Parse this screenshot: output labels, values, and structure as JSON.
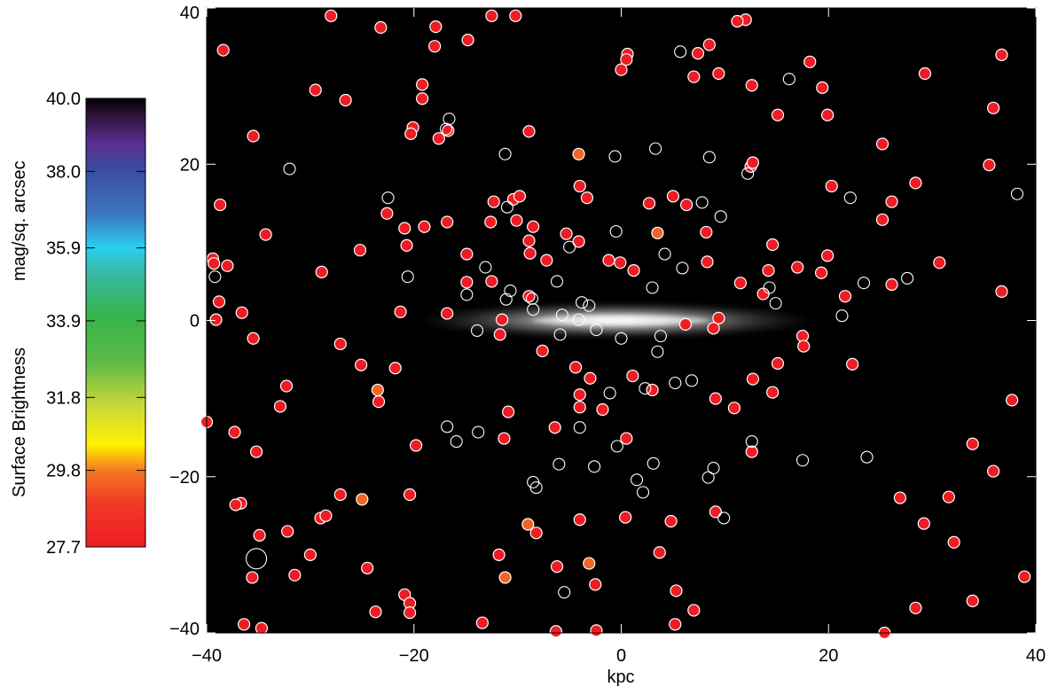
{
  "chart_data": [
    {
      "type": "scatter",
      "background": "#000000",
      "xlabel": "kpc",
      "ylabel": "",
      "xlim": [
        -40,
        40
      ],
      "ylim": [
        -40,
        40
      ],
      "xticks": [
        -40,
        -20,
        0,
        20,
        40
      ],
      "yticks": [
        -40,
        -20,
        0,
        20,
        40
      ],
      "grid": false,
      "galaxy": {
        "type": "edge-on disk image",
        "center": [
          0,
          0
        ],
        "extent_x": [
          -20,
          19
        ],
        "extent_y": [
          -2,
          2
        ],
        "color": "#e8e8e8"
      },
      "series": [
        {
          "style": "filled red circle, white edge",
          "color": "#ee1c24",
          "points": [
            [
              -28,
              39
            ],
            [
              -12.5,
              39
            ],
            [
              -10.2,
              39
            ],
            [
              12,
              38.5
            ],
            [
              11.2,
              38.3
            ],
            [
              -23.2,
              37.5
            ],
            [
              -17.9,
              37.6
            ],
            [
              -14.8,
              35.9
            ],
            [
              -38.4,
              34.6
            ],
            [
              -18,
              35.1
            ],
            [
              8.5,
              35.3
            ],
            [
              0.6,
              34.1
            ],
            [
              0.5,
              33.4
            ],
            [
              7.4,
              34.2
            ],
            [
              36.7,
              34
            ],
            [
              18.2,
              33.1
            ],
            [
              0,
              32.1
            ],
            [
              7,
              31.2
            ],
            [
              9.4,
              31.6
            ],
            [
              29.3,
              31.6
            ],
            [
              -19.2,
              30.2
            ],
            [
              12.6,
              30.1
            ],
            [
              -29.5,
              29.5
            ],
            [
              19.4,
              29.8
            ],
            [
              -26.6,
              28.2
            ],
            [
              -19.2,
              28.4
            ],
            [
              35.9,
              27.2
            ],
            [
              15.1,
              26.3
            ],
            [
              19.9,
              26.3
            ],
            [
              -20.1,
              24.7
            ],
            [
              -16.7,
              24.3
            ],
            [
              -8.9,
              24.2
            ],
            [
              -35.5,
              23.6
            ],
            [
              -20.3,
              23.9
            ],
            [
              -17.6,
              23.3
            ],
            [
              25.2,
              22.6
            ],
            [
              12.5,
              19.7
            ],
            [
              12.7,
              20.2
            ],
            [
              35.5,
              19.9
            ],
            [
              -4,
              17.2
            ],
            [
              28.4,
              17.6
            ],
            [
              20.3,
              17.2
            ],
            [
              -12.3,
              15.2
            ],
            [
              -10.4,
              15.5
            ],
            [
              -9.8,
              15.9
            ],
            [
              -3.3,
              15.7
            ],
            [
              5,
              15.9
            ],
            [
              2.7,
              15
            ],
            [
              6.3,
              14.8
            ],
            [
              -38.7,
              14.8
            ],
            [
              26.1,
              15.2
            ],
            [
              -22.6,
              13.7
            ],
            [
              -16.8,
              12.6
            ],
            [
              -12.6,
              12.6
            ],
            [
              -10.1,
              12.8
            ],
            [
              -8.5,
              12
            ],
            [
              -34.3,
              11
            ],
            [
              -19,
              12
            ],
            [
              -20.9,
              11.8
            ],
            [
              -5.3,
              11.1
            ],
            [
              8.2,
              11.3
            ],
            [
              25.2,
              12.9
            ],
            [
              -8.9,
              10.2
            ],
            [
              -4.1,
              10.1
            ],
            [
              14.6,
              9.7
            ],
            [
              -25.2,
              9
            ],
            [
              -14.9,
              8.5
            ],
            [
              -8.8,
              8.6
            ],
            [
              -39.4,
              7.9
            ],
            [
              -39.3,
              7.3
            ],
            [
              -7.2,
              7.7
            ],
            [
              -1.2,
              7.7
            ],
            [
              -0.1,
              7.4
            ],
            [
              19.9,
              8.3
            ],
            [
              30.7,
              7.4
            ],
            [
              -38,
              7
            ],
            [
              -20.7,
              9.6
            ],
            [
              -28.9,
              6.2
            ],
            [
              1.2,
              6.4
            ],
            [
              8.3,
              7.5
            ],
            [
              14.2,
              6.4
            ],
            [
              17,
              6.8
            ],
            [
              19.3,
              6.1
            ],
            [
              -14.9,
              4.9
            ],
            [
              -12.5,
              5
            ],
            [
              26.1,
              4.6
            ],
            [
              11.5,
              4.8
            ],
            [
              -8.9,
              3.1
            ],
            [
              13.7,
              3.4
            ],
            [
              21.6,
              3.1
            ],
            [
              36.7,
              3.7
            ],
            [
              -38.8,
              2.4
            ],
            [
              -36.6,
              1
            ],
            [
              -21.3,
              1.1
            ],
            [
              -16.8,
              0.9
            ],
            [
              -39.1,
              0.1
            ],
            [
              -11.5,
              0.1
            ],
            [
              9.4,
              0.3
            ],
            [
              6.2,
              -0.5
            ],
            [
              8.9,
              -1
            ],
            [
              -35.5,
              -2.3
            ],
            [
              -11.7,
              -1.8
            ],
            [
              17.5,
              -2
            ],
            [
              17.6,
              -3.3
            ],
            [
              -27.1,
              -3
            ],
            [
              -7.6,
              -3.9
            ],
            [
              -25.1,
              -5.7
            ],
            [
              -21.8,
              -6.1
            ],
            [
              -4.4,
              -6
            ],
            [
              15.1,
              -5.5
            ],
            [
              22.3,
              -5.6
            ],
            [
              -3,
              -7.4
            ],
            [
              1.1,
              -7.1
            ],
            [
              12.7,
              -7.5
            ],
            [
              -32.3,
              -8.4
            ],
            [
              3,
              -8.9
            ],
            [
              14.6,
              -9.2
            ],
            [
              -4,
              -9.5
            ],
            [
              -23.4,
              -10.4
            ],
            [
              -32.9,
              -11
            ],
            [
              -10.9,
              -11.7
            ],
            [
              -4,
              -11.1
            ],
            [
              -1.8,
              -11.4
            ],
            [
              9.1,
              -10
            ],
            [
              10.9,
              -11.2
            ],
            [
              37.7,
              -10.2
            ],
            [
              -40,
              -13
            ],
            [
              -6.4,
              -13.7
            ],
            [
              -37.3,
              -14.3
            ],
            [
              0.5,
              -15.1
            ],
            [
              -11.3,
              -15.1
            ],
            [
              -19.8,
              -16
            ],
            [
              12.6,
              -16.8
            ],
            [
              -35.2,
              -16.8
            ],
            [
              33.9,
              -15.8
            ],
            [
              35.9,
              -19.3
            ],
            [
              -20.4,
              -22.3
            ],
            [
              -27.1,
              -22.3
            ],
            [
              -36.7,
              -23.4
            ],
            [
              -37.2,
              -23.6
            ],
            [
              26.9,
              -22.7
            ],
            [
              31.6,
              -22.6
            ],
            [
              -29,
              -25.3
            ],
            [
              -28.5,
              -25
            ],
            [
              -4,
              -25.5
            ],
            [
              0.4,
              -25.2
            ],
            [
              4.8,
              -25.7
            ],
            [
              9.1,
              -24.5
            ],
            [
              29.2,
              -26
            ],
            [
              -34.9,
              -27.5
            ],
            [
              -32.2,
              -27
            ],
            [
              -8.2,
              -27.2
            ],
            [
              32.1,
              -28.4
            ],
            [
              -30,
              -30
            ],
            [
              -11.8,
              -30
            ],
            [
              3.7,
              -29.7
            ],
            [
              -24.5,
              -31.7
            ],
            [
              -6.2,
              -31.5
            ],
            [
              -35.6,
              -32.9
            ],
            [
              -31.5,
              -32.6
            ],
            [
              -2.5,
              -33.8
            ],
            [
              5.3,
              -34.6
            ],
            [
              -20.9,
              -35.1
            ],
            [
              -20.4,
              -36.2
            ],
            [
              38.9,
              -32.8
            ],
            [
              33.9,
              -35.9
            ],
            [
              -23.7,
              -37.3
            ],
            [
              -20.4,
              -37.4
            ],
            [
              7,
              -37.1
            ],
            [
              28.4,
              -36.8
            ],
            [
              -36.4,
              -38.9
            ],
            [
              -34.7,
              -39.4
            ],
            [
              -13.4,
              -38.7
            ],
            [
              -6.3,
              -39.8
            ],
            [
              -2.4,
              -39.7
            ],
            [
              5.2,
              -38.9
            ],
            [
              25.4,
              -40
            ]
          ]
        },
        {
          "style": "filled orange circle, white edge",
          "color": "#f26522",
          "points": [
            [
              -4.1,
              21.3
            ],
            [
              3.5,
              11.2
            ],
            [
              -23.5,
              -8.9
            ],
            [
              -25,
              -22.9
            ],
            [
              -9,
              -26.1
            ],
            [
              -3.1,
              -31.1
            ],
            [
              -11.2,
              -32.9
            ]
          ]
        },
        {
          "style": "open white circle",
          "color": "#ffffff",
          "points": [
            [
              -16.6,
              25.8
            ],
            [
              -16.9,
              24.5
            ],
            [
              3.3,
              22
            ],
            [
              -11.2,
              21.3
            ],
            [
              -0.6,
              21
            ],
            [
              8.5,
              20.9
            ],
            [
              16.2,
              30.9
            ],
            [
              5.7,
              34.4
            ],
            [
              -32,
              19.4
            ],
            [
              12.2,
              18.8
            ],
            [
              -22.5,
              15.7
            ],
            [
              -11,
              14.5
            ],
            [
              7.8,
              15.1
            ],
            [
              22.1,
              15.7
            ],
            [
              38.2,
              16.2
            ],
            [
              9.6,
              13.3
            ],
            [
              -0.5,
              11.4
            ],
            [
              -5,
              9.4
            ],
            [
              4.2,
              8.5
            ],
            [
              -13.1,
              6.8
            ],
            [
              -20.6,
              5.6
            ],
            [
              -6.2,
              5
            ],
            [
              5.9,
              6.7
            ],
            [
              23.4,
              4.8
            ],
            [
              27.6,
              5.4
            ],
            [
              -39.2,
              5.6
            ],
            [
              -10.7,
              3.8
            ],
            [
              -14.9,
              3.3
            ],
            [
              3,
              4.2
            ],
            [
              14.3,
              4.2
            ],
            [
              -11.1,
              2.7
            ],
            [
              -8.6,
              2.8
            ],
            [
              -3.8,
              2.3
            ],
            [
              -3.1,
              1.9
            ],
            [
              14.9,
              2.2
            ],
            [
              -8.5,
              1.4
            ],
            [
              -5.7,
              0.7
            ],
            [
              -4.1,
              0.1
            ],
            [
              21.3,
              0.6
            ],
            [
              -13.9,
              -1.3
            ],
            [
              -5.9,
              -1.8
            ],
            [
              -2.4,
              -1.2
            ],
            [
              0,
              -2.3
            ],
            [
              3.8,
              -2
            ],
            [
              3.5,
              -4
            ],
            [
              5.2,
              -8
            ],
            [
              6.8,
              -7.7
            ],
            [
              2.3,
              -8.7
            ],
            [
              -1.1,
              -9.3
            ],
            [
              -16.8,
              -13.6
            ],
            [
              -13.8,
              -14.3
            ],
            [
              -4,
              -13.7
            ],
            [
              -15.9,
              -15.5
            ],
            [
              -0.4,
              -16.1
            ],
            [
              12.6,
              -15.5
            ],
            [
              -6,
              -18.4
            ],
            [
              -2.6,
              -18.7
            ],
            [
              3.1,
              -18.3
            ],
            [
              8.9,
              -18.9
            ],
            [
              17.5,
              -17.9
            ],
            [
              23.7,
              -17.5
            ],
            [
              -8.5,
              -20.7
            ],
            [
              -8.2,
              -21.4
            ],
            [
              1.5,
              -20.4
            ],
            [
              8.4,
              -20.1
            ],
            [
              2.1,
              -22
            ],
            [
              9.9,
              -25.3
            ],
            [
              -5.5,
              -34.8
            ],
            [
              -35.2,
              -30.5
            ]
          ]
        }
      ]
    },
    {
      "type": "heatmap",
      "ylabel": "Surface Brightness",
      "sublabel": "mag/sq. arcsec",
      "range": [
        27.7,
        40.0
      ],
      "tick_labels": [
        "40.0",
        "38.0",
        "35.9",
        "33.9",
        "31.8",
        "29.8",
        "27.7"
      ],
      "colormap": [
        {
          "value": 27.7,
          "color": "#ee1c24"
        },
        {
          "value": 28.9,
          "color": "#f03a24"
        },
        {
          "value": 29.8,
          "color": "#f47920"
        },
        {
          "value": 30.5,
          "color": "#fff200"
        },
        {
          "value": 31.6,
          "color": "#c8d73a"
        },
        {
          "value": 32.8,
          "color": "#5ab946"
        },
        {
          "value": 34.0,
          "color": "#37b34a"
        },
        {
          "value": 35.2,
          "color": "#36b9a0"
        },
        {
          "value": 35.9,
          "color": "#2bd0f0"
        },
        {
          "value": 36.8,
          "color": "#3a78c0"
        },
        {
          "value": 38.0,
          "color": "#3a4ea0"
        },
        {
          "value": 38.8,
          "color": "#5a2d90"
        },
        {
          "value": 39.6,
          "color": "#2a1030"
        },
        {
          "value": 40.0,
          "color": "#000000"
        }
      ]
    }
  ]
}
